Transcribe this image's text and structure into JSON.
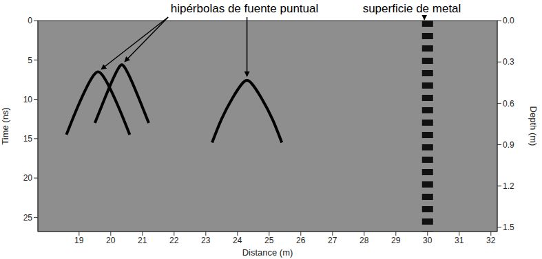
{
  "chart_data": {
    "type": "line",
    "x_label": "Distance (m)",
    "y_label": "Time (ns)",
    "y2_label": "Depth (m)",
    "xlim": [
      17.7,
      32.2
    ],
    "xticks": [
      19,
      20,
      21,
      22,
      23,
      24,
      25,
      26,
      27,
      28,
      29,
      30,
      31,
      32
    ],
    "ylim": [
      0,
      26.8
    ],
    "yticks": [
      0,
      5,
      10,
      15,
      20,
      25
    ],
    "y2lim": [
      0,
      1.53
    ],
    "y2ticks": [
      {
        "value": 0,
        "label": "0.0"
      },
      0.3,
      0.6,
      0.9,
      1.2,
      1.5
    ],
    "grid": false,
    "series": [
      {
        "color": "#000000",
        "line_style": "solid",
        "x": [
          18.6,
          18.9,
          19.2,
          19.45,
          19.6,
          19.75,
          20.0,
          20.3,
          20.6
        ],
        "values": [
          14.5,
          11.5,
          8.8,
          7.0,
          6.5,
          7.0,
          8.8,
          11.5,
          14.5
        ]
      },
      {
        "color": "#000000",
        "line_style": "solid",
        "x": [
          19.5,
          19.8,
          20.05,
          20.25,
          20.35,
          20.45,
          20.65,
          20.9,
          21.2
        ],
        "values": [
          13.0,
          10.0,
          7.6,
          6.0,
          5.6,
          6.0,
          7.6,
          10.0,
          13.0
        ]
      },
      {
        "color": "#000000",
        "line_style": "solid",
        "x": [
          23.2,
          23.5,
          23.85,
          24.15,
          24.3,
          24.45,
          24.75,
          25.1,
          25.4
        ],
        "values": [
          15.5,
          12.5,
          9.8,
          8.0,
          7.6,
          8.0,
          9.8,
          12.5,
          15.5
        ]
      },
      {
        "color": "#111111",
        "line_style": "dashed",
        "x": [
          30.0,
          30.0
        ],
        "values": [
          0,
          26.8
        ]
      }
    ],
    "annotations": [
      {
        "text": "hipérbolas de fuente puntual",
        "targets": [
          [
            19.6,
            6.5
          ],
          [
            20.35,
            5.6
          ],
          [
            24.3,
            7.6
          ]
        ]
      },
      {
        "text": "superficie de metal",
        "targets": [
          [
            29.9,
            0.4
          ]
        ]
      }
    ]
  }
}
